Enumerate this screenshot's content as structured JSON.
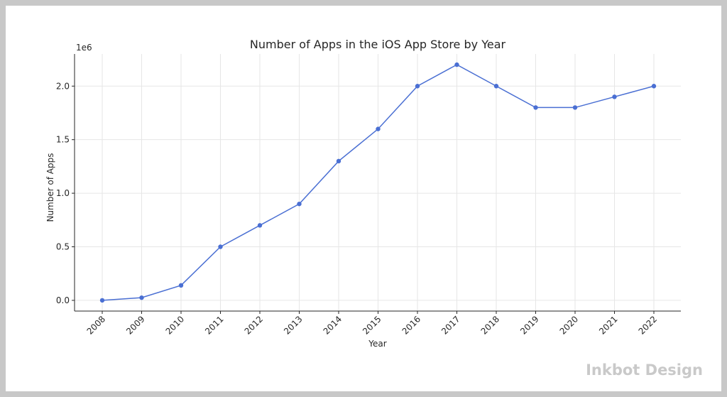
{
  "chart_data": {
    "type": "line",
    "title": "Number of Apps in the iOS App Store by Year",
    "xlabel": "Year",
    "ylabel": "Number of Apps",
    "y_offset_label": "1e6",
    "x": [
      "2008",
      "2009",
      "2010",
      "2011",
      "2012",
      "2013",
      "2014",
      "2015",
      "2016",
      "2017",
      "2018",
      "2019",
      "2020",
      "2021",
      "2022"
    ],
    "values": [
      0.0,
      0.025,
      0.14,
      0.5,
      0.7,
      0.9,
      1.3,
      1.6,
      2.0,
      2.2,
      2.0,
      1.8,
      1.8,
      1.9,
      2.0
    ],
    "yticks": [
      "0.0",
      "0.5",
      "1.0",
      "1.5",
      "2.0"
    ],
    "ylim": [
      -0.1,
      2.3
    ],
    "grid": true,
    "line_color": "#4a6fd3"
  },
  "watermark": "Inkbot Design"
}
